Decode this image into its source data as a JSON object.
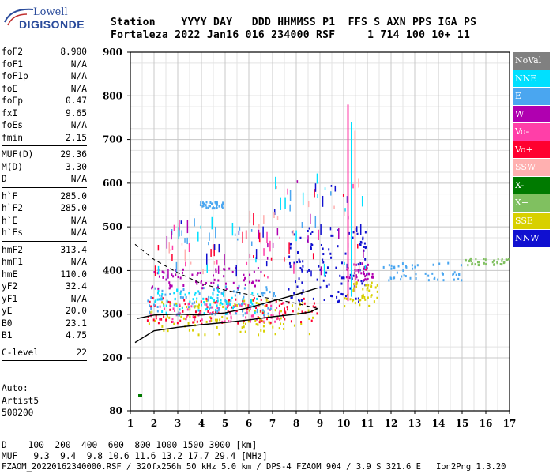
{
  "logo": {
    "line1": "Lowell",
    "line2": "DIGISONDE"
  },
  "header": {
    "labels_line": "Station    YYYY DAY   DDD HHMMSS P1  FFS S AXN PPS IGA PS",
    "values_line": "Fortaleza 2022 Jan16 016 234000 RSF     1 714 100 10+ 11"
  },
  "parameters": [
    {
      "label": "foF2",
      "value": "8.900"
    },
    {
      "label": "foF1",
      "value": "N/A"
    },
    {
      "label": "foF1p",
      "value": "N/A"
    },
    {
      "label": "foE",
      "value": "N/A"
    },
    {
      "label": "foEp",
      "value": "0.47"
    },
    {
      "label": "fxI",
      "value": "9.65"
    },
    {
      "label": "foEs",
      "value": "N/A"
    },
    {
      "label": "fmin",
      "value": "2.15",
      "sep_after": true
    },
    {
      "label": "MUF(D)",
      "value": "29.36"
    },
    {
      "label": "M(D)",
      "value": "3.30"
    },
    {
      "label": "D",
      "value": "N/A",
      "sep_after": true
    },
    {
      "label": "h`F",
      "value": "285.0"
    },
    {
      "label": "h`F2",
      "value": "285.0"
    },
    {
      "label": "h`E",
      "value": "N/A"
    },
    {
      "label": "h`Es",
      "value": "N/A",
      "sep_after": true
    },
    {
      "label": "hmF2",
      "value": "313.4"
    },
    {
      "label": "hmF1",
      "value": "N/A"
    },
    {
      "label": "hmE",
      "value": "110.0"
    },
    {
      "label": "yF2",
      "value": "32.4"
    },
    {
      "label": "yF1",
      "value": "N/A"
    },
    {
      "label": "yE",
      "value": "20.0"
    },
    {
      "label": "B0",
      "value": "23.1"
    },
    {
      "label": "B1",
      "value": "4.75",
      "sep_after": true
    },
    {
      "label": "C-level",
      "value": "22",
      "sep_after": true
    }
  ],
  "autoscaling": {
    "line1": "Auto:",
    "line2": "Artist5",
    "line3": "500200"
  },
  "footer": {
    "line_d": "D    100  200  400  600  800 1000 1500 3000 [km]",
    "line_muf": "MUF   9.3  9.4  9.8 10.6 11.6 13.2 17.7 29.4 [MHz]",
    "line_file": "FZAOM_20220162340000.RSF / 320fx256h 50 kHz 5.0 km / DPS-4 FZAOM 904 / 3.9 S 321.6 E   Ion2Png 1.3.20"
  },
  "legend": [
    {
      "label": "NoVal",
      "color": "#808080"
    },
    {
      "label": "NNE",
      "color": "#00e0ff"
    },
    {
      "label": "E",
      "color": "#4aa6f0"
    },
    {
      "label": "W",
      "color": "#b000b0"
    },
    {
      "label": "Vo-",
      "color": "#ff3fa8"
    },
    {
      "label": "Vo+",
      "color": "#ff0030"
    },
    {
      "label": "SSW",
      "color": "#ffb0b0"
    },
    {
      "label": "X-",
      "color": "#007a00"
    },
    {
      "label": "X+",
      "color": "#80c060"
    },
    {
      "label": "SSE",
      "color": "#d8d000"
    },
    {
      "label": "NNW",
      "color": "#1010d0"
    }
  ],
  "chart_data": {
    "type": "scatter",
    "xlim": [
      1,
      17
    ],
    "ylim": [
      80,
      900
    ],
    "x_ticks": [
      "1",
      "2",
      "3",
      "4",
      "5",
      "6",
      "7",
      "8",
      "9",
      "10",
      "11",
      "12",
      "13",
      "14",
      "15",
      "16",
      "17"
    ],
    "y_ticks": [
      "80",
      "200",
      "300",
      "400",
      "500",
      "600",
      "700",
      "800",
      "900"
    ],
    "grid": true,
    "echo_regions": [
      {
        "series": "SSE",
        "x": [
          1.7,
          8.7
        ],
        "y": [
          255,
          335
        ]
      },
      {
        "series": "Vo+",
        "x": [
          1.6,
          8.9
        ],
        "y": [
          280,
          340
        ]
      },
      {
        "series": "Vo-",
        "x": [
          1.8,
          7.5
        ],
        "y": [
          285,
          330
        ]
      },
      {
        "series": "E",
        "x": [
          1.7,
          7.2
        ],
        "y": [
          300,
          370
        ]
      },
      {
        "series": "W",
        "x": [
          1.8,
          6.5
        ],
        "y": [
          360,
          410
        ]
      },
      {
        "series": "NNE",
        "x": [
          2.0,
          6.5
        ],
        "y": [
          300,
          360
        ]
      },
      {
        "series": "NNW",
        "x": [
          7.6,
          11.0
        ],
        "y": [
          330,
          500
        ]
      },
      {
        "series": "W",
        "x": [
          10.0,
          11.2
        ],
        "y": [
          380,
          420
        ]
      },
      {
        "series": "SSE",
        "x": [
          10.0,
          11.4
        ],
        "y": [
          320,
          380
        ]
      },
      {
        "series": "E",
        "x": [
          11.5,
          15.0
        ],
        "y": [
          380,
          420
        ]
      },
      {
        "series": "X+",
        "x": [
          15.0,
          17.0
        ],
        "y": [
          415,
          430
        ]
      },
      {
        "series": "E",
        "x": [
          3.9,
          4.9
        ],
        "y": [
          545,
          560
        ]
      }
    ],
    "trace_x": [
      1.2,
      2.0,
      3.0,
      4.0,
      5.0,
      6.0,
      7.0,
      8.0,
      8.6,
      8.9
    ],
    "trace_y": [
      235,
      262,
      270,
      276,
      281,
      287,
      294,
      300,
      305,
      313
    ],
    "trace_upper_x": [
      1.3,
      2.0,
      3.0,
      4.0,
      5.0,
      6.0,
      7.0,
      8.0,
      8.6,
      8.9
    ],
    "trace_upper_y": [
      290,
      298,
      300,
      298,
      303,
      315,
      330,
      345,
      355,
      360
    ],
    "profile_x": [
      1.2,
      2.0,
      3.0,
      4.0,
      5.0,
      6.0,
      7.0,
      8.0,
      8.9
    ],
    "profile_y": [
      460,
      425,
      395,
      370,
      355,
      345,
      335,
      325,
      313
    ]
  }
}
